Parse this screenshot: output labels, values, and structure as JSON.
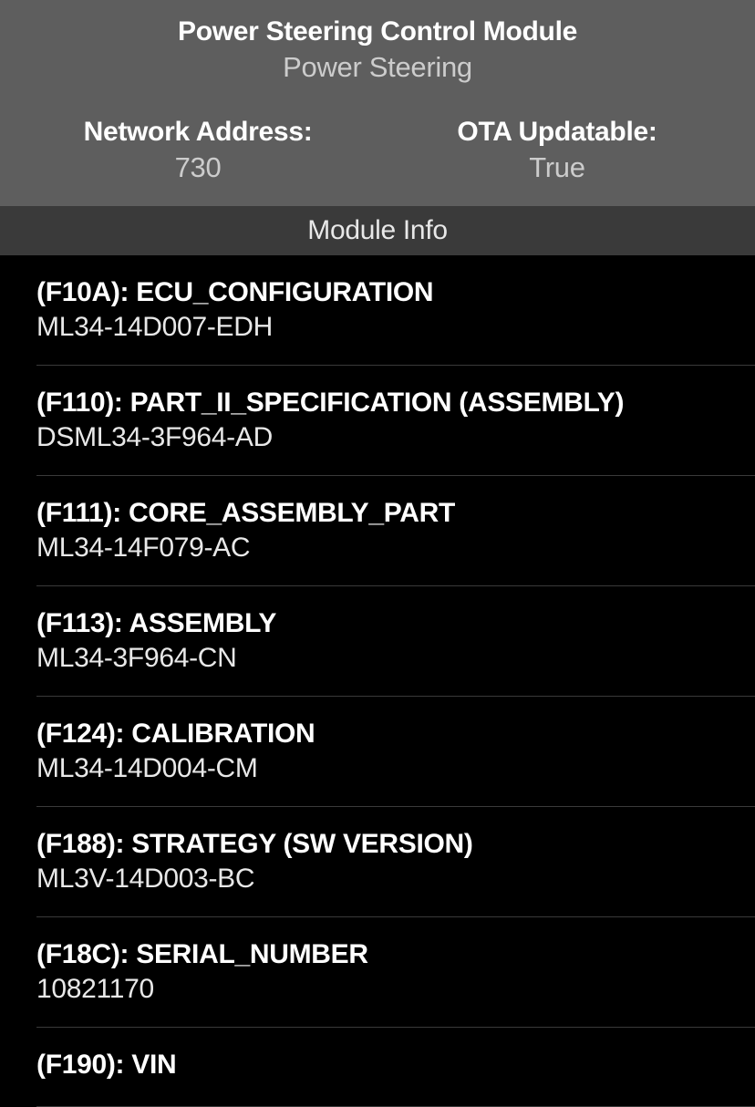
{
  "header": {
    "title": "Power Steering Control Module",
    "subtitle": "Power Steering",
    "network_address_label": "Network Address:",
    "network_address_value": "730",
    "ota_label": "OTA Updatable:",
    "ota_value": "True"
  },
  "section": {
    "title": "Module Info"
  },
  "modules": [
    {
      "code": "(F10A): ECU_CONFIGURATION",
      "value": "ML34-14D007-EDH"
    },
    {
      "code": "(F110): PART_II_SPECIFICATION (ASSEMBLY)",
      "value": "DSML34-3F964-AD"
    },
    {
      "code": "(F111): CORE_ASSEMBLY_PART",
      "value": "ML34-14F079-AC"
    },
    {
      "code": "(F113): ASSEMBLY",
      "value": "ML34-3F964-CN"
    },
    {
      "code": "(F124): CALIBRATION",
      "value": "ML34-14D004-CM"
    },
    {
      "code": "(F188): STRATEGY (SW VERSION)",
      "value": "ML3V-14D003-BC"
    },
    {
      "code": "(F18C): SERIAL_NUMBER",
      "value": "10821170"
    },
    {
      "code": "(F190): VIN",
      "value": ""
    }
  ],
  "colors": {
    "header_bg": "#5e5e5e",
    "section_bg": "#3a3a3a",
    "body_bg": "#000000",
    "title_color": "#ffffff",
    "subtitle_color": "#cccccc",
    "divider_color": "#3a3a3a"
  }
}
